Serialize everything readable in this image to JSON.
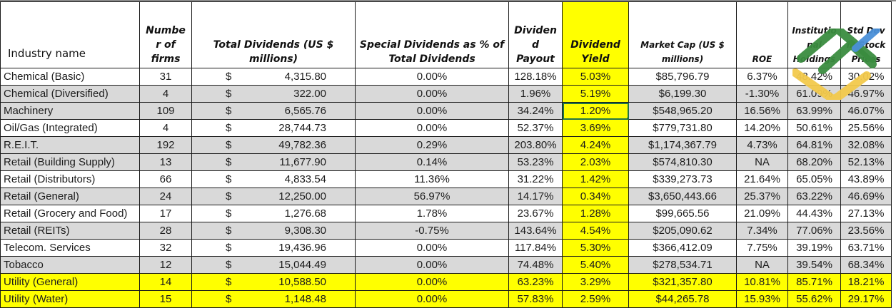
{
  "table": {
    "headers": [
      "Industry name",
      "Numbe r of firms",
      "Total Dividends (US $ millions)",
      "Special Dividends as % of Total Dividends",
      "Dividen d Payout",
      "Dividend Yield",
      "Market Cap (US $ millions)",
      "ROE",
      "Institutio nal Holdings",
      "Std Dev in Stock Prices"
    ],
    "currency_symbol": "$",
    "rows": [
      {
        "industry": "Chemical (Basic)",
        "firms": "31",
        "total_dividends": "4,315.80",
        "special_pct": "0.00%",
        "payout": "128.18%",
        "yield": "5.03%",
        "market_cap": "$85,796.79",
        "roe": "6.37%",
        "institutional": "48.42%",
        "std_dev": "30.02%",
        "style": "white"
      },
      {
        "industry": "Chemical (Diversified)",
        "firms": "4",
        "total_dividends": "322.00",
        "special_pct": "0.00%",
        "payout": "1.96%",
        "yield": "5.19%",
        "market_cap": "$6,199.30",
        "roe": "-1.30%",
        "institutional": "61.09%",
        "std_dev": "46.97%",
        "style": "gray"
      },
      {
        "industry": "Machinery",
        "firms": "109",
        "total_dividends": "6,565.76",
        "special_pct": "0.00%",
        "payout": "34.24%",
        "yield": "1.20%",
        "market_cap": "$548,965.20",
        "roe": "16.56%",
        "institutional": "63.99%",
        "std_dev": "46.07%",
        "style": "gray"
      },
      {
        "industry": "Oil/Gas (Integrated)",
        "firms": "4",
        "total_dividends": "28,744.73",
        "special_pct": "0.00%",
        "payout": "52.37%",
        "yield": "3.69%",
        "market_cap": "$779,731.80",
        "roe": "14.20%",
        "institutional": "50.61%",
        "std_dev": "25.56%",
        "style": "white"
      },
      {
        "industry": "R.E.I.T.",
        "firms": "192",
        "total_dividends": "49,782.36",
        "special_pct": "0.29%",
        "payout": "203.80%",
        "yield": "4.24%",
        "market_cap": "$1,174,367.79",
        "roe": "4.73%",
        "institutional": "64.81%",
        "std_dev": "32.08%",
        "style": "gray"
      },
      {
        "industry": "Retail (Building Supply)",
        "firms": "13",
        "total_dividends": "11,677.90",
        "special_pct": "0.14%",
        "payout": "53.23%",
        "yield": "2.03%",
        "market_cap": "$574,810.30",
        "roe": "NA",
        "institutional": "68.20%",
        "std_dev": "52.13%",
        "style": "gray"
      },
      {
        "industry": "Retail (Distributors)",
        "firms": "66",
        "total_dividends": "4,833.54",
        "special_pct": "11.36%",
        "payout": "31.22%",
        "yield": "1.42%",
        "market_cap": "$339,273.73",
        "roe": "21.64%",
        "institutional": "65.05%",
        "std_dev": "43.89%",
        "style": "white"
      },
      {
        "industry": "Retail (General)",
        "firms": "24",
        "total_dividends": "12,250.00",
        "special_pct": "56.97%",
        "payout": "14.17%",
        "yield": "0.34%",
        "market_cap": "$3,650,443.66",
        "roe": "25.37%",
        "institutional": "63.22%",
        "std_dev": "46.69%",
        "style": "gray"
      },
      {
        "industry": "Retail (Grocery and Food)",
        "firms": "17",
        "total_dividends": "1,276.68",
        "special_pct": "1.78%",
        "payout": "23.67%",
        "yield": "1.28%",
        "market_cap": "$99,665.56",
        "roe": "21.09%",
        "institutional": "44.43%",
        "std_dev": "27.13%",
        "style": "white"
      },
      {
        "industry": "Retail (REITs)",
        "firms": "28",
        "total_dividends": "9,308.30",
        "special_pct": "-0.75%",
        "payout": "143.64%",
        "yield": "4.54%",
        "market_cap": "$205,090.62",
        "roe": "7.34%",
        "institutional": "77.06%",
        "std_dev": "23.56%",
        "style": "gray"
      },
      {
        "industry": "Telecom. Services",
        "firms": "32",
        "total_dividends": "19,436.96",
        "special_pct": "0.00%",
        "payout": "117.84%",
        "yield": "5.30%",
        "market_cap": "$366,412.09",
        "roe": "7.75%",
        "institutional": "39.19%",
        "std_dev": "63.71%",
        "style": "white"
      },
      {
        "industry": "Tobacco",
        "firms": "12",
        "total_dividends": "15,044.49",
        "special_pct": "0.00%",
        "payout": "74.48%",
        "yield": "5.40%",
        "market_cap": "$278,534.71",
        "roe": "NA",
        "institutional": "39.54%",
        "std_dev": "68.34%",
        "style": "gray"
      },
      {
        "industry": "Utility (General)",
        "firms": "14",
        "total_dividends": "10,588.50",
        "special_pct": "0.00%",
        "payout": "63.23%",
        "yield": "3.29%",
        "market_cap": "$321,357.80",
        "roe": "10.81%",
        "institutional": "85.71%",
        "std_dev": "18.21%",
        "style": "yellow"
      },
      {
        "industry": "Utility (Water)",
        "firms": "15",
        "total_dividends": "1,148.48",
        "special_pct": "0.00%",
        "payout": "57.83%",
        "yield": "2.59%",
        "market_cap": "$44,265.78",
        "roe": "15.93%",
        "institutional": "55.62%",
        "std_dev": "29.17%",
        "style": "yellow"
      }
    ],
    "selected_cell": {
      "row": 2,
      "column": "yield"
    }
  },
  "colors": {
    "highlight": "#ffff00",
    "band_gray": "#d9d9d9",
    "selection": "#217346",
    "logo_green": "#3a8c3f",
    "logo_blue": "#4a90d9",
    "logo_yellow": "#f2c94c"
  },
  "watermark": {
    "icon": "logo-watermark-icon"
  }
}
